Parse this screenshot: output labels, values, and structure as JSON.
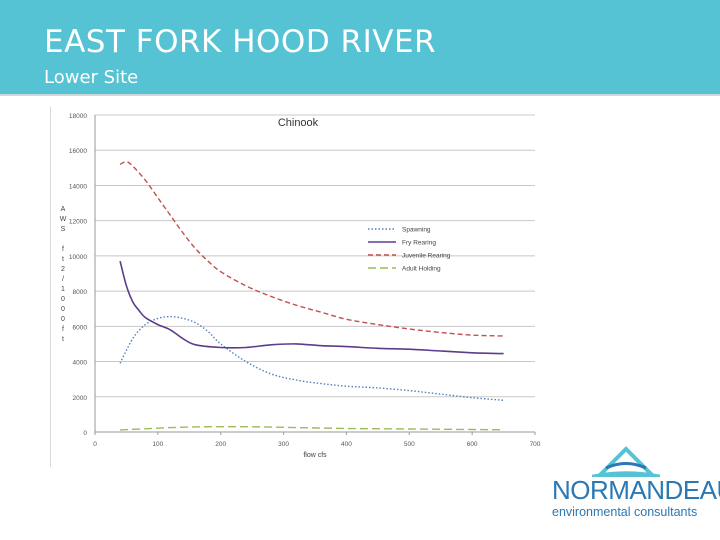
{
  "slide": {
    "title": "EAST FORK HOOD RIVER",
    "subtitle": "Lower Site"
  },
  "logo": {
    "name": "NORMANDEAU",
    "tagline": "environmental consultants",
    "primary_color": "#2a78b4",
    "accent_color": "#56c3d5"
  },
  "colors": {
    "header_bg": "#56c3d5",
    "header_text": "#ffffff"
  },
  "chart_data": {
    "type": "line",
    "title": "Chinook",
    "xlabel": "flow cfs",
    "ylabel": "AWS ft²/1000 ft",
    "ylabel_glyphs": [
      "A",
      "W",
      "S",
      "",
      "f",
      "t",
      "2",
      "/",
      "1",
      "0",
      "0",
      "0",
      "f",
      "t"
    ],
    "xlim": [
      0,
      700
    ],
    "ylim": [
      0,
      18000
    ],
    "x_ticks": [
      0,
      100,
      200,
      300,
      400,
      500,
      600,
      700
    ],
    "y_ticks": [
      0,
      2000,
      4000,
      6000,
      8000,
      10000,
      12000,
      14000,
      16000,
      18000
    ],
    "grid": "horizontal",
    "legend_position": "right",
    "series": [
      {
        "name": "Spawning",
        "color": "#4f81bd",
        "dash": "dotted",
        "x": [
          40,
          60,
          80,
          100,
          120,
          140,
          160,
          180,
          200,
          240,
          280,
          320,
          360,
          400,
          450,
          500,
          550,
          600,
          650
        ],
        "y": [
          3900,
          5300,
          6100,
          6450,
          6550,
          6450,
          6200,
          5700,
          5000,
          4000,
          3300,
          2950,
          2750,
          2600,
          2500,
          2350,
          2150,
          1950,
          1800
        ]
      },
      {
        "name": "Fry Rearing",
        "color": "#5c3d8c",
        "dash": "solid",
        "x": [
          40,
          50,
          60,
          70,
          80,
          100,
          120,
          140,
          160,
          200,
          240,
          280,
          320,
          360,
          400,
          450,
          500,
          550,
          600,
          650
        ],
        "y": [
          9700,
          8300,
          7400,
          6900,
          6500,
          6100,
          5800,
          5300,
          4950,
          4800,
          4800,
          4950,
          5000,
          4900,
          4850,
          4750,
          4700,
          4600,
          4500,
          4450
        ]
      },
      {
        "name": "Juvenile Rearing",
        "color": "#c0504d",
        "dash": "dashed",
        "x": [
          40,
          50,
          60,
          80,
          100,
          120,
          140,
          160,
          180,
          200,
          240,
          280,
          320,
          360,
          400,
          450,
          500,
          550,
          600,
          650
        ],
        "y": [
          15200,
          15350,
          15100,
          14300,
          13300,
          12300,
          11300,
          10400,
          9700,
          9100,
          8300,
          7700,
          7200,
          6800,
          6400,
          6100,
          5850,
          5650,
          5500,
          5450
        ]
      },
      {
        "name": "Adult Holding",
        "color": "#9bbb59",
        "dash": "longdash",
        "x": [
          40,
          80,
          120,
          160,
          200,
          240,
          280,
          320,
          400,
          500,
          600,
          650
        ],
        "y": [
          120,
          180,
          250,
          290,
          300,
          300,
          280,
          250,
          200,
          170,
          140,
          130
        ]
      }
    ]
  }
}
